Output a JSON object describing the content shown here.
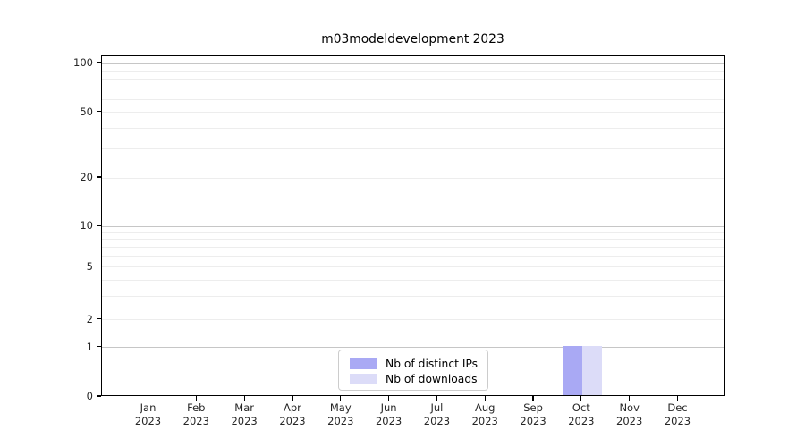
{
  "chart_data": {
    "type": "bar",
    "title": "m03modeldevelopment 2023",
    "categories": [
      "Jan",
      "Feb",
      "Mar",
      "Apr",
      "May",
      "Jun",
      "Jul",
      "Aug",
      "Sep",
      "Oct",
      "Nov",
      "Dec"
    ],
    "category_sublabel": "2023",
    "series": [
      {
        "name": "Nb of distinct IPs",
        "color": "#a9a9f4",
        "values": [
          0,
          0,
          0,
          0,
          0,
          0,
          0,
          0,
          0,
          1,
          0,
          0
        ]
      },
      {
        "name": "Nb of downloads",
        "color": "#dcdcf8",
        "values": [
          0,
          0,
          0,
          0,
          0,
          0,
          0,
          0,
          0,
          1,
          0,
          0
        ]
      }
    ],
    "xlabel": "",
    "ylabel": "",
    "yscale": "symlog",
    "ylim": [
      0,
      117
    ],
    "yticks": [
      0,
      1,
      2,
      5,
      10,
      20,
      50,
      100
    ],
    "y_major_gridlines": [
      1,
      10,
      100
    ],
    "y_minor_gridlines": [
      2,
      3,
      4,
      5,
      6,
      7,
      8,
      9,
      20,
      30,
      40,
      50,
      60,
      70,
      80,
      90
    ],
    "grid": "on",
    "legend_position": "lower center",
    "colors": {
      "major_grid": "#c6c6c6",
      "minor_grid": "#ededed",
      "axis": "#000000",
      "text": "#262626"
    }
  }
}
